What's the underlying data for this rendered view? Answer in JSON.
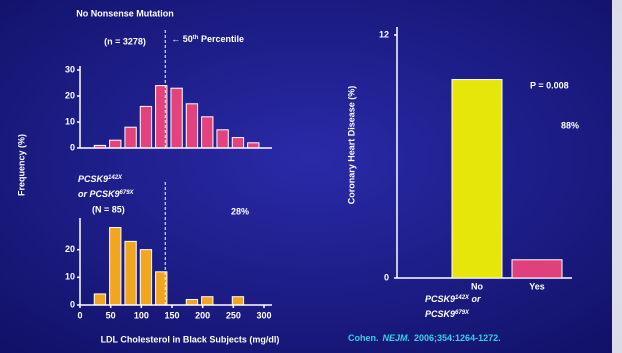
{
  "chart_data": [
    {
      "type": "histogram",
      "title": "No Nonsense Mutation",
      "subtitle": "(n = 3278)",
      "bins": [
        20,
        45,
        70,
        95,
        120,
        145,
        170,
        195,
        220,
        245,
        270,
        295
      ],
      "values": [
        1,
        3,
        8,
        16,
        24,
        23,
        17,
        12,
        7,
        4,
        2
      ],
      "color": "#e3427c",
      "xlim": [
        0,
        300
      ],
      "ylim": [
        0,
        30
      ],
      "yticks": [
        0,
        10,
        20,
        30
      ],
      "reference_line": {
        "value": 139,
        "label": [
          "← 50",
          "th",
          " Percentile"
        ]
      }
    },
    {
      "type": "histogram",
      "title": [
        [
          "PCSK9",
          "142X"
        ],
        [
          "or PCSK9",
          "679X"
        ]
      ],
      "subtitle": "(N = 85)",
      "annotation": "28%",
      "bins": [
        20,
        45,
        70,
        95,
        120,
        145,
        170,
        195,
        220,
        245,
        270,
        295
      ],
      "values": [
        4,
        28,
        23,
        20,
        12,
        0,
        2,
        3,
        0,
        3,
        0
      ],
      "color": "#f2a51e",
      "xlim": [
        0,
        300
      ],
      "ylim": [
        0,
        30
      ],
      "yticks": [
        0,
        10,
        20
      ],
      "xticks": [
        0,
        50,
        100,
        150,
        200,
        250,
        300
      ],
      "reference_line": {
        "value": 139
      },
      "x_label": "LDL Cholesterol in Black Subjects (mg/dl)",
      "y_label": "Frequency (%)"
    },
    {
      "type": "bar",
      "y_label": "Coronary Heart Disease (%)",
      "categories": [
        "No",
        "Yes"
      ],
      "category_caption": [
        [
          "PCSK9",
          "142X",
          " or"
        ],
        [
          "PCSK9",
          "679X"
        ]
      ],
      "values": [
        9.8,
        0.9
      ],
      "colors": [
        "#e6e60a",
        "#e0407c"
      ],
      "ylim": [
        0,
        12
      ],
      "yticks": [
        0,
        12
      ],
      "annotations": [
        "P = 0.008",
        "88%"
      ]
    }
  ],
  "citation": {
    "author": "Cohen.",
    "journal": "NEJM.",
    "reference": "2006;354:1264-1272."
  }
}
